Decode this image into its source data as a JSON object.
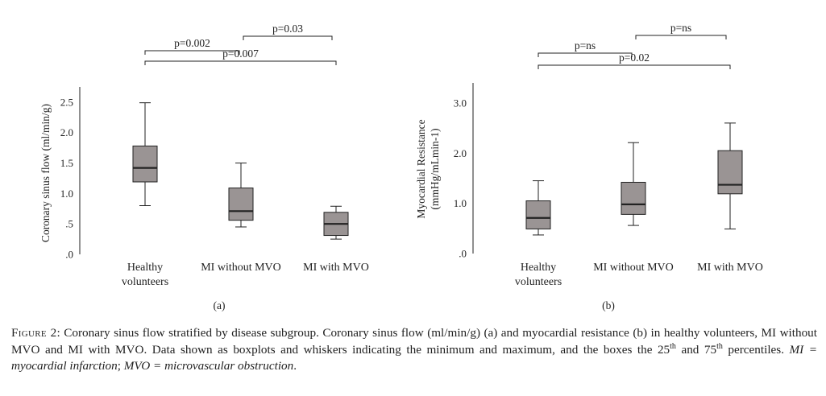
{
  "chart_data": [
    {
      "type": "box",
      "panel_label": "(a)",
      "ylabel": "Coronary sinus flow (ml/min/g)",
      "ylim": [
        0,
        2.75
      ],
      "yticks": [
        0,
        0.5,
        1.0,
        1.5,
        2.0,
        2.5
      ],
      "ytick_labels": [
        ".0",
        ".5",
        "1.0",
        "1.5",
        "2.0",
        "2.5"
      ],
      "categories": [
        [
          "Healthy",
          "volunteers"
        ],
        [
          "MI without MVO"
        ],
        [
          "MI with MVO"
        ]
      ],
      "boxes": [
        {
          "min": 0.8,
          "q1": 1.19,
          "median": 1.42,
          "q3": 1.78,
          "max": 2.49
        },
        {
          "min": 0.45,
          "q1": 0.56,
          "median": 0.71,
          "q3": 1.09,
          "max": 1.5
        },
        {
          "min": 0.25,
          "q1": 0.31,
          "median": 0.5,
          "q3": 0.69,
          "max": 0.79
        }
      ],
      "significance": [
        {
          "from": 0,
          "to": 2,
          "label": "p=0.007",
          "level": 2
        },
        {
          "from": 0,
          "to": 1,
          "label": "p=0.002",
          "level": 1
        },
        {
          "from": 1,
          "to": 2,
          "label": "p=0.03",
          "level": 0
        }
      ]
    },
    {
      "type": "box",
      "panel_label": "(b)",
      "ylabel": "Myocardial Resistance (mmHg/mLmin-1)",
      "ylabel_lines": [
        "Myocardial Resistance",
        "(mmHg/mLmin-1)"
      ],
      "ylim": [
        0,
        3.4
      ],
      "yticks": [
        0,
        1.0,
        2.0,
        3.0
      ],
      "ytick_labels": [
        ".0",
        "1.0",
        "2.0",
        "3.0"
      ],
      "categories": [
        [
          "Healthy",
          "volunteers"
        ],
        [
          "MI without MVO"
        ],
        [
          "MI with MVO"
        ]
      ],
      "boxes": [
        {
          "min": 0.37,
          "q1": 0.49,
          "median": 0.71,
          "q3": 1.05,
          "max": 1.45
        },
        {
          "min": 0.56,
          "q1": 0.78,
          "median": 0.98,
          "q3": 1.42,
          "max": 2.21
        },
        {
          "min": 0.49,
          "q1": 1.19,
          "median": 1.37,
          "q3": 2.05,
          "max": 2.6
        }
      ],
      "significance": [
        {
          "from": 0,
          "to": 2,
          "label": "p=0.02",
          "level": 2
        },
        {
          "from": 0,
          "to": 1,
          "label": "p=ns",
          "level": 1
        },
        {
          "from": 1,
          "to": 2,
          "label": "p=ns",
          "level": 0
        }
      ]
    }
  ],
  "style": {
    "box_fill": "#9a9494",
    "line_color": "#222222"
  },
  "caption": {
    "figure_label": "Figure 2",
    "text_1": ": Coronary sinus flow stratified by disease subgroup. Coronary sinus flow (ml/min/g) (a) and myocardial resistance (b) in healthy volunteers, MI without MVO and MI with MVO. Data shown as boxplots and whiskers indicating the minimum and maximum, and the boxes the 25",
    "sup_1": "th",
    "text_2": " and 75",
    "sup_2": "th",
    "text_3": " percentiles. ",
    "italic_1": "MI = myocardial infarction",
    "text_4": "; ",
    "italic_2": "MVO = microvascular obstruction",
    "text_5": "."
  }
}
